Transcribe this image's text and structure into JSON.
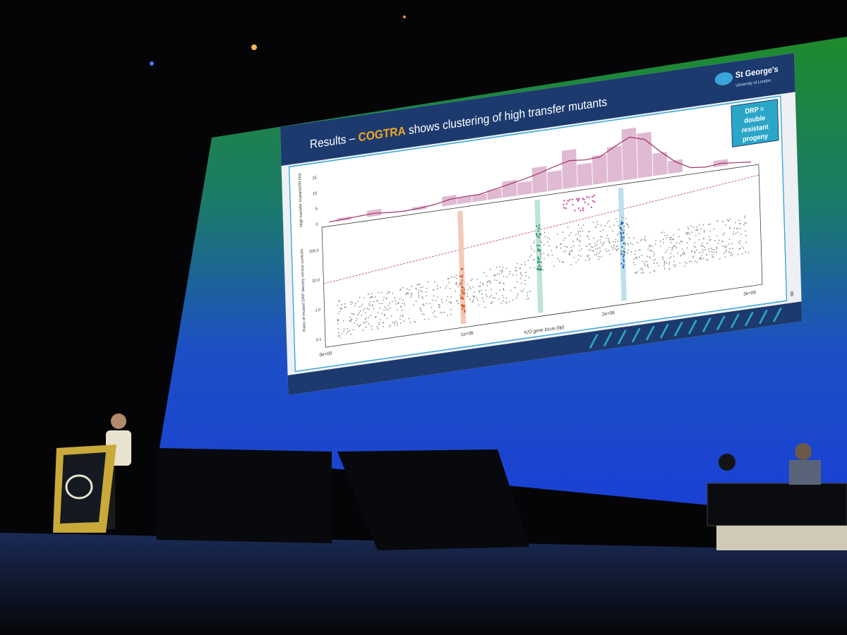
{
  "slide": {
    "title_prefix": "Results – ",
    "title_highlight": "COGTRA",
    "title_suffix": " shows clustering of high transfer mutants",
    "logo": {
      "name": "St George's",
      "sub": "University of London"
    },
    "callout": [
      "DRP =",
      "double",
      "resistant",
      "progeny"
    ],
    "top_panel": {
      "ylabel": "High transfer mutants/50 kbp",
      "yticks": [
        "0",
        "5",
        "10",
        "15"
      ]
    },
    "bottom_panel": {
      "ylabel": "Ratio of mutant DRP density versus controls",
      "yticks": [
        "0.1",
        "1.0",
        "10.0",
        "100.0"
      ]
    },
    "xticks": [
      "0e+00",
      "1e+06",
      "2e+06",
      "3e+06"
    ],
    "xlabel": "K/O gene locus (bp)",
    "page_number": "8"
  }
}
